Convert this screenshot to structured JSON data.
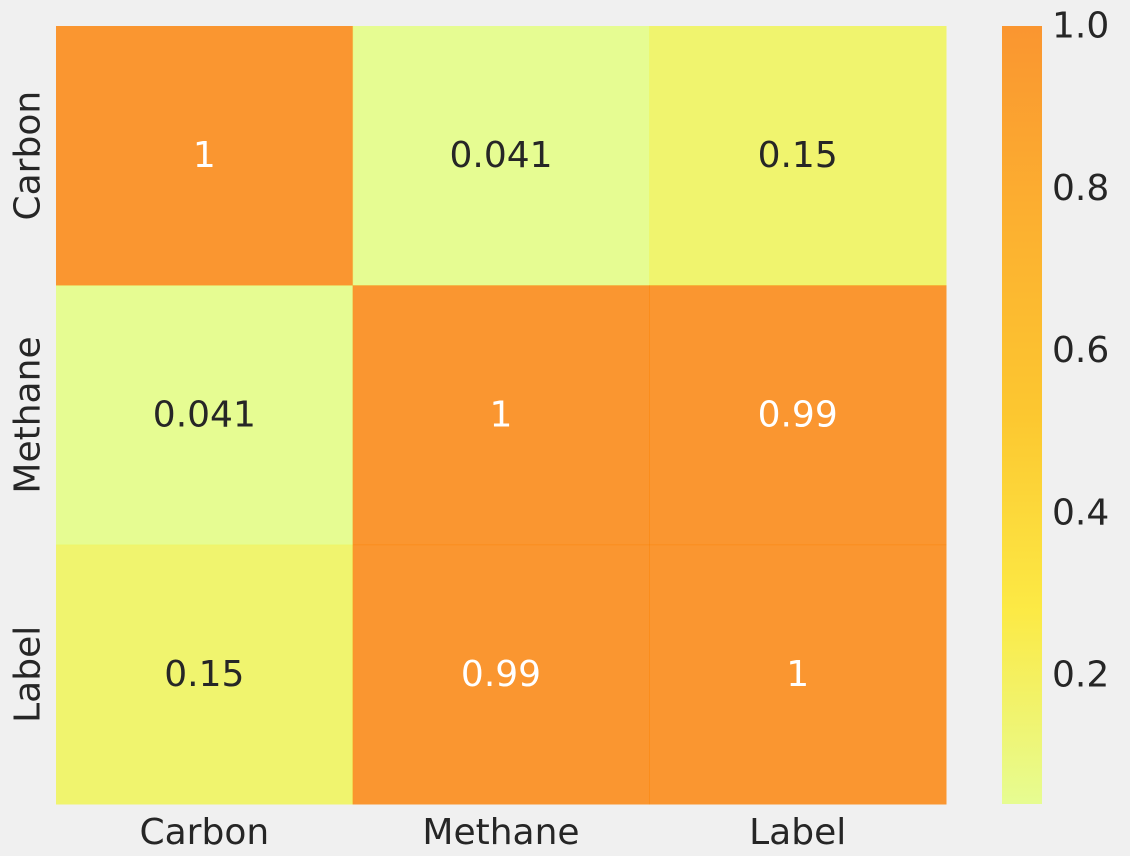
{
  "chart_data": {
    "type": "heatmap",
    "title": "",
    "xlabel": "",
    "ylabel": "",
    "x_categories": [
      "Carbon",
      "Methane",
      "Label"
    ],
    "y_categories": [
      "Carbon",
      "Methane",
      "Label"
    ],
    "values": [
      [
        1,
        0.041,
        0.15
      ],
      [
        0.041,
        1,
        0.99
      ],
      [
        0.15,
        0.99,
        1
      ]
    ],
    "cell_labels": [
      [
        "1",
        "0.041",
        "0.15"
      ],
      [
        "0.041",
        "1",
        "0.99"
      ],
      [
        "0.15",
        "0.99",
        "1"
      ]
    ],
    "colormap": "Wistia",
    "colorbar": {
      "range": [
        0.041,
        1.0
      ],
      "ticks": [
        0.2,
        0.4,
        0.6,
        0.8,
        1.0
      ],
      "tick_labels": [
        "0.2",
        "0.4",
        "0.6",
        "0.8",
        "1.0"
      ]
    },
    "colors": {
      "background": "#f0f0f0",
      "low": "#e4ff7a",
      "mid_low": "#ffe81a",
      "mid": "#ffbd00",
      "mid_high": "#ffa000",
      "high": "#fc7f00",
      "text_dark": "#262626",
      "text_light": "#ffffff"
    },
    "cell_alpha": 0.8,
    "grid": false
  }
}
